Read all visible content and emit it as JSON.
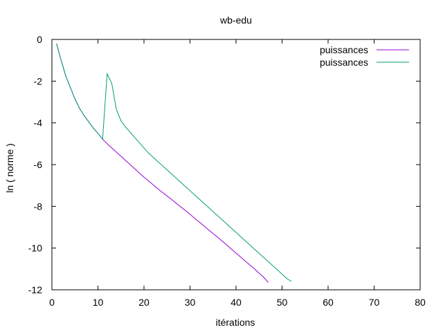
{
  "chart_data": {
    "type": "line",
    "title": "wb-edu",
    "xlabel": "itérations",
    "ylabel": "ln ( norme )",
    "xlim": [
      0,
      80
    ],
    "ylim": [
      -12,
      0
    ],
    "xticks": [
      0,
      10,
      20,
      30,
      40,
      50,
      60,
      70,
      80
    ],
    "yticks": [
      0,
      -2,
      -4,
      -6,
      -8,
      -10,
      -12
    ],
    "grid": false,
    "legend_position": "top-right",
    "series": [
      {
        "name": "puissances",
        "color": "#9400d3",
        "x": [
          1,
          2,
          3,
          4,
          5,
          6,
          7,
          8,
          9,
          10,
          11,
          12,
          13,
          14,
          15,
          16,
          17,
          18,
          19,
          20,
          21,
          22,
          23,
          24,
          25,
          26,
          27,
          28,
          29,
          30,
          31,
          32,
          33,
          34,
          35,
          36,
          37,
          38,
          39,
          40,
          41,
          42,
          43,
          44,
          45,
          46,
          47
        ],
        "y": [
          -0.2,
          -1.0,
          -1.75,
          -2.3,
          -2.85,
          -3.3,
          -3.65,
          -3.95,
          -4.25,
          -4.5,
          -4.78,
          -5.0,
          -5.2,
          -5.4,
          -5.6,
          -5.8,
          -6.0,
          -6.2,
          -6.4,
          -6.6,
          -6.78,
          -6.97,
          -7.15,
          -7.33,
          -7.5,
          -7.67,
          -7.85,
          -8.03,
          -8.2,
          -8.38,
          -8.57,
          -8.75,
          -8.93,
          -9.12,
          -9.3,
          -9.48,
          -9.67,
          -9.86,
          -10.05,
          -10.24,
          -10.43,
          -10.62,
          -10.81,
          -11.0,
          -11.2,
          -11.4,
          -11.65
        ]
      },
      {
        "name": "puissances",
        "color": "#009e73",
        "x": [
          1,
          2,
          3,
          4,
          5,
          6,
          7,
          8,
          9,
          10,
          11,
          12,
          13,
          14,
          15,
          16,
          17,
          18,
          19,
          20,
          21,
          22,
          23,
          24,
          25,
          26,
          27,
          28,
          29,
          30,
          31,
          32,
          33,
          34,
          35,
          36,
          37,
          38,
          39,
          40,
          41,
          42,
          43,
          44,
          45,
          46,
          47,
          48,
          49,
          50,
          51,
          52
        ],
        "y": [
          -0.2,
          -1.0,
          -1.75,
          -2.3,
          -2.85,
          -3.3,
          -3.65,
          -3.95,
          -4.25,
          -4.5,
          -4.78,
          -1.65,
          -2.1,
          -3.35,
          -3.9,
          -4.2,
          -4.45,
          -4.7,
          -4.95,
          -5.2,
          -5.45,
          -5.65,
          -5.85,
          -6.05,
          -6.25,
          -6.45,
          -6.65,
          -6.85,
          -7.05,
          -7.25,
          -7.45,
          -7.65,
          -7.85,
          -8.05,
          -8.25,
          -8.45,
          -8.65,
          -8.85,
          -9.05,
          -9.25,
          -9.45,
          -9.65,
          -9.85,
          -10.05,
          -10.25,
          -10.45,
          -10.65,
          -10.85,
          -11.05,
          -11.25,
          -11.45,
          -11.6
        ]
      }
    ]
  }
}
